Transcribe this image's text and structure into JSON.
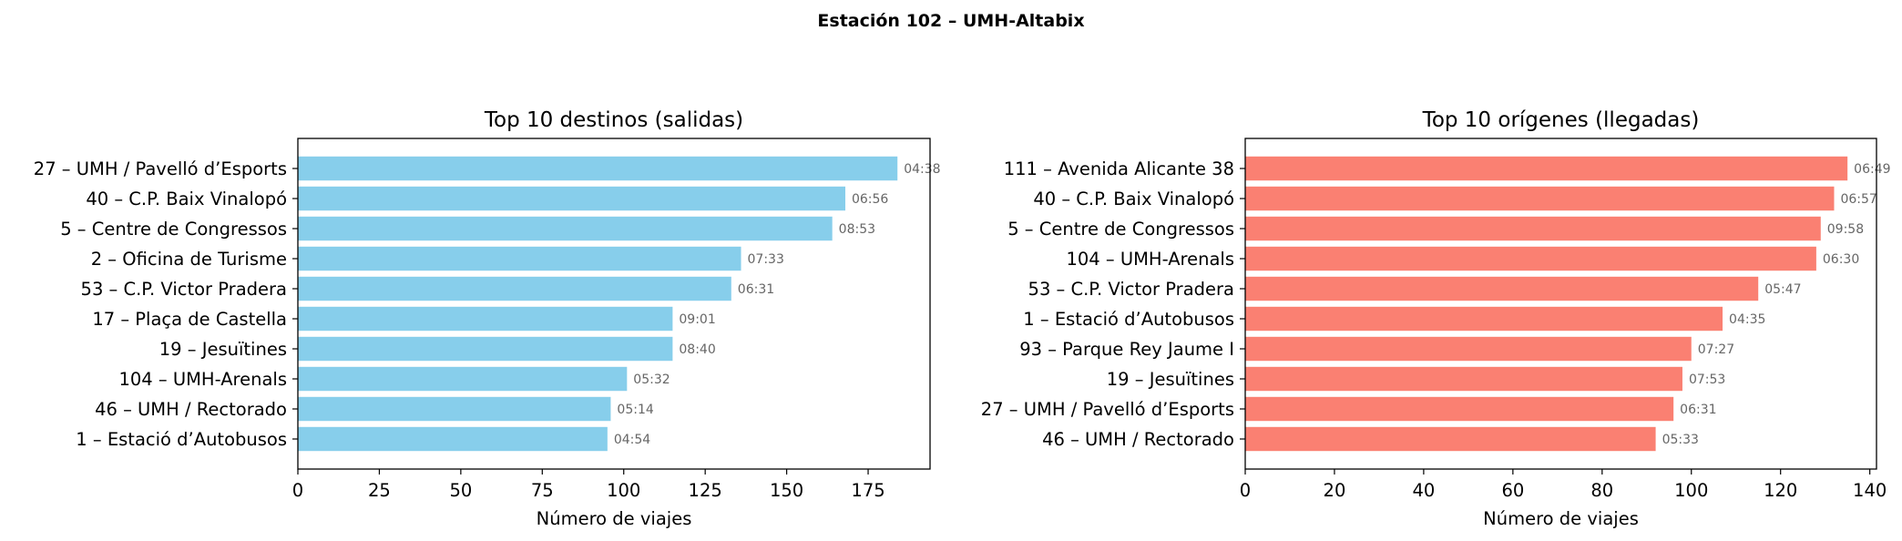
{
  "suptitle": "Estación 102 – UMH-Altabix",
  "chart_data": [
    {
      "type": "bar",
      "orientation": "horizontal",
      "title": "Top 10 destinos (salidas)",
      "xlabel": "Número de viajes",
      "ylabel": "",
      "color": "#87CEEB",
      "xlim": [
        0,
        194
      ],
      "xticks": [
        0,
        25,
        50,
        75,
        100,
        125,
        150,
        175
      ],
      "categories": [
        "27 – UMH / Pavelló d’Esports",
        "40 – C.P. Baix Vinalopó",
        "5 – Centre de Congressos",
        "2 – Oficina de Turisme",
        "53 – C.P. Victor Pradera",
        "17 – Plaça de Castella",
        "19 – Jesuïtines",
        "104 – UMH-Arenals",
        "46 – UMH / Rectorado",
        "1 – Estació d’Autobusos"
      ],
      "values": [
        184,
        168,
        164,
        136,
        133,
        115,
        115,
        101,
        96,
        95
      ],
      "labels": [
        "04:38",
        "06:56",
        "08:53",
        "07:33",
        "06:31",
        "09:01",
        "08:40",
        "05:32",
        "05:14",
        "04:54"
      ]
    },
    {
      "type": "bar",
      "orientation": "horizontal",
      "title": "Top 10 orígenes (llegadas)",
      "xlabel": "Número de viajes",
      "ylabel": "",
      "color": "#FA8072",
      "xlim": [
        0,
        141.5
      ],
      "xticks": [
        0,
        20,
        40,
        60,
        80,
        100,
        120,
        140
      ],
      "categories": [
        "111 – Avenida Alicante 38",
        "40 – C.P. Baix Vinalopó",
        "5 – Centre de Congressos",
        "104 – UMH-Arenals",
        "53 – C.P. Victor Pradera",
        "1 – Estació d’Autobusos",
        "93 – Parque Rey Jaume I",
        "19 – Jesuïtines",
        "27 – UMH / Pavelló d’Esports",
        "46 – UMH / Rectorado"
      ],
      "values": [
        135,
        132,
        129,
        128,
        115,
        107,
        100,
        98,
        96,
        92
      ],
      "labels": [
        "06:49",
        "06:57",
        "09:58",
        "06:30",
        "05:47",
        "04:35",
        "07:27",
        "07:53",
        "06:31",
        "05:33"
      ]
    }
  ]
}
